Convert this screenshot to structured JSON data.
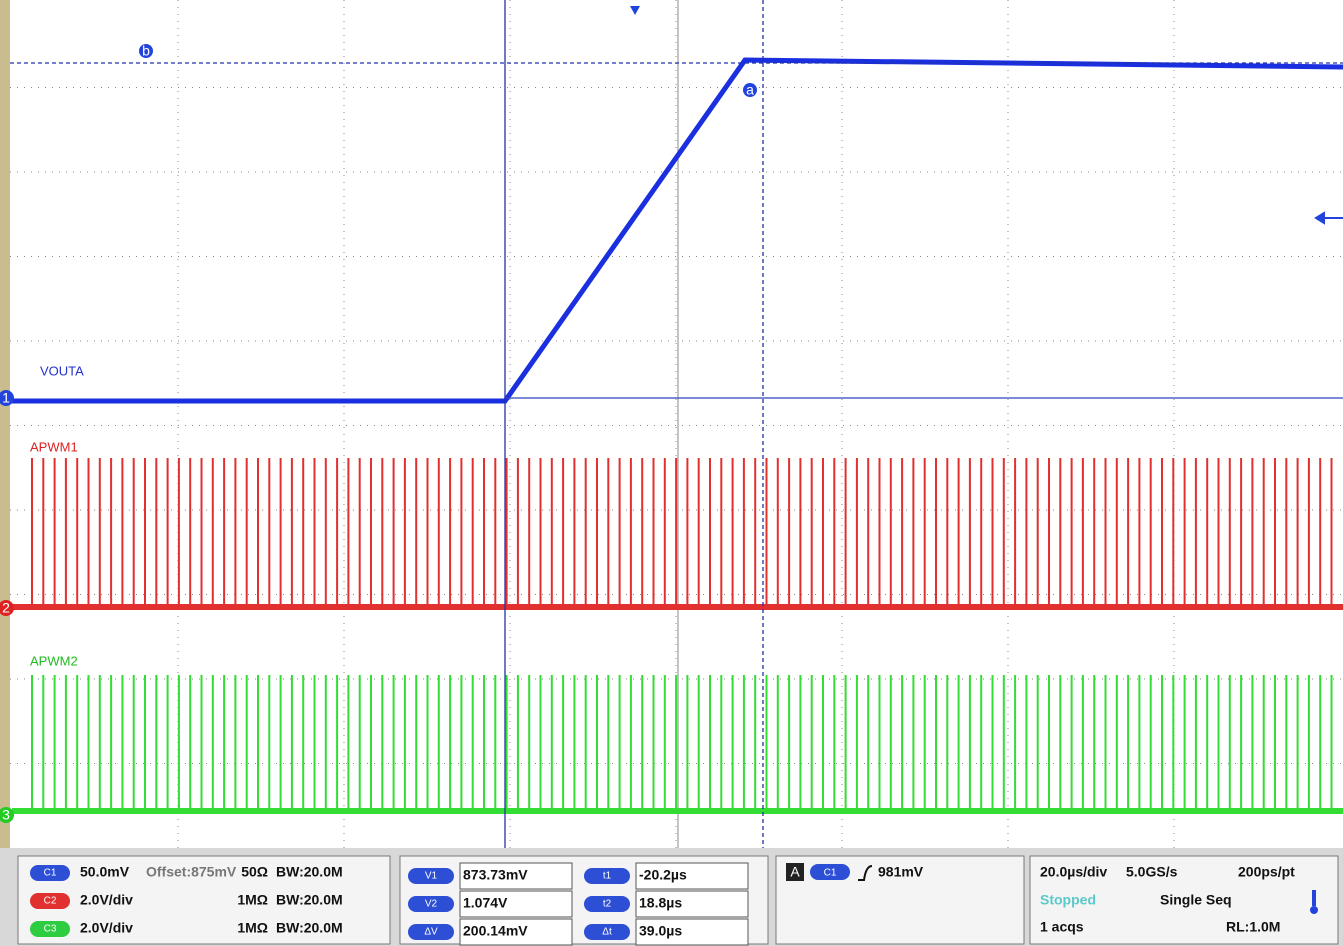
{
  "screen": {
    "traces": {
      "ch1_label": "VOUTA",
      "ch2_label": "APWM1",
      "ch3_label": "APWM2"
    },
    "markers": {
      "ch1": "1",
      "ch2": "2",
      "ch3": "3",
      "cursor_a": "a",
      "cursor_b": "b"
    }
  },
  "channels": [
    {
      "badge": "C1",
      "scale": "50.0mV",
      "offset": "Offset:875mV",
      "impedance": "50Ω",
      "bandwidth": "BW:20.0M"
    },
    {
      "badge": "C2",
      "scale": "2.0V/div",
      "impedance": "1MΩ",
      "bandwidth": "BW:20.0M"
    },
    {
      "badge": "C3",
      "scale": "2.0V/div",
      "impedance": "1MΩ",
      "bandwidth": "BW:20.0M"
    }
  ],
  "cursors": {
    "v": [
      {
        "label": "V1",
        "value": "873.73mV"
      },
      {
        "label": "V2",
        "value": "1.074V"
      },
      {
        "label": "ΔV",
        "value": "200.14mV"
      }
    ],
    "t": [
      {
        "label": "t1",
        "value": "-20.2µs"
      },
      {
        "label": "t2",
        "value": "18.8µs"
      },
      {
        "label": "Δt",
        "value": "39.0µs"
      }
    ]
  },
  "trigger": {
    "mode": "A",
    "source": "C1",
    "level": "981mV"
  },
  "timebase": {
    "scale": "20.0µs/div",
    "rate": "5.0GS/s",
    "resolution": "200ps/pt",
    "state": "Stopped",
    "mode": "Single Seq",
    "acqs": "1 acqs",
    "record": "RL:1.0M"
  }
}
